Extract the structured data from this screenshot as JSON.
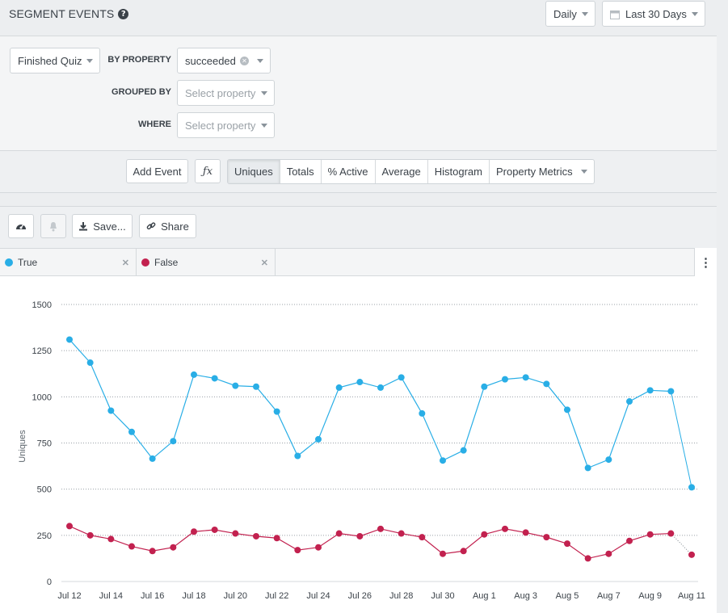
{
  "header": {
    "title": "SEGMENT EVENTS",
    "help_icon": "?",
    "interval": "Daily",
    "date_range": "Last 30 Days"
  },
  "query": {
    "event": "Finished Quiz",
    "by_property_label": "BY PROPERTY",
    "by_property_value": "succeeded",
    "grouped_by_label": "GROUPED BY",
    "grouped_by_placeholder": "Select property",
    "where_label": "WHERE",
    "where_placeholder": "Select property"
  },
  "toolbar": {
    "add_event": "Add Event",
    "fx": "ƒx",
    "tabs": [
      "Uniques",
      "Totals",
      "% Active",
      "Average",
      "Histogram",
      "Property Metrics"
    ],
    "active_tab": "Uniques"
  },
  "panel_actions": {
    "save": "Save...",
    "share": "Share"
  },
  "legend": [
    {
      "name": "True",
      "color": "#29aee6"
    },
    {
      "name": "False",
      "color": "#c2214f"
    }
  ],
  "chart_data": {
    "type": "line",
    "ylabel": "Uniques",
    "ylim": [
      0,
      1500
    ],
    "yticks": [
      0,
      250,
      500,
      750,
      1000,
      1250,
      1500
    ],
    "x": [
      "Jul 12",
      "Jul 13",
      "Jul 14",
      "Jul 15",
      "Jul 16",
      "Jul 17",
      "Jul 18",
      "Jul 19",
      "Jul 20",
      "Jul 21",
      "Jul 22",
      "Jul 23",
      "Jul 24",
      "Jul 25",
      "Jul 26",
      "Jul 27",
      "Jul 28",
      "Jul 29",
      "Jul 30",
      "Jul 31",
      "Aug 1",
      "Aug 2",
      "Aug 3",
      "Aug 4",
      "Aug 5",
      "Aug 6",
      "Aug 7",
      "Aug 8",
      "Aug 9",
      "Aug 10",
      "Aug 11"
    ],
    "xtick_labels": [
      "Jul 12",
      "Jul 14",
      "Jul 16",
      "Jul 18",
      "Jul 20",
      "Jul 22",
      "Jul 24",
      "Jul 26",
      "Jul 28",
      "Jul 30",
      "Aug 1",
      "Aug 3",
      "Aug 5",
      "Aug 7",
      "Aug 9",
      "Aug 11"
    ],
    "grid": true,
    "series": [
      {
        "name": "True",
        "color": "#29aee6",
        "values": [
          1310,
          1185,
          925,
          810,
          665,
          760,
          1120,
          1100,
          1060,
          1055,
          920,
          680,
          770,
          1050,
          1080,
          1050,
          1105,
          910,
          655,
          710,
          1055,
          1095,
          1105,
          1070,
          930,
          615,
          660,
          975,
          1035,
          1030,
          510
        ]
      },
      {
        "name": "False",
        "color": "#c2214f",
        "values": [
          300,
          250,
          230,
          190,
          165,
          185,
          270,
          280,
          260,
          245,
          235,
          170,
          185,
          260,
          245,
          285,
          260,
          240,
          150,
          165,
          255,
          285,
          265,
          240,
          205,
          125,
          150,
          220,
          255,
          260,
          145
        ]
      }
    ]
  }
}
